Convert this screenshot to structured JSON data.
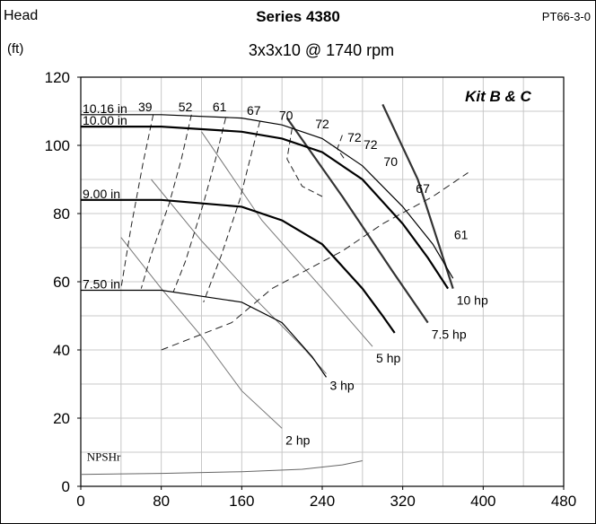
{
  "header": {
    "left_label": "Head",
    "title": "Series 4380",
    "code": "PT66-3-0",
    "unit": "(ft)",
    "subtitle": "3x3x10 @ 1740 rpm"
  },
  "chart_data": {
    "type": "line",
    "kit_label": "Kit B & C",
    "xlim": [
      0,
      480
    ],
    "ylim": [
      0,
      120
    ],
    "x_ticks": [
      0,
      80,
      160,
      240,
      320,
      400,
      480
    ],
    "y_ticks": [
      0,
      20,
      40,
      60,
      80,
      100,
      120
    ],
    "grid": true,
    "impeller_curves": [
      {
        "label": "10.16 in",
        "x": [
          0,
          80,
          160,
          200,
          240,
          280,
          320,
          350,
          370
        ],
        "y": [
          109,
          109,
          108,
          106,
          102,
          94,
          82,
          71,
          61
        ]
      },
      {
        "label": "10.00 in",
        "x": [
          0,
          80,
          160,
          200,
          240,
          280,
          320,
          345,
          365
        ],
        "y": [
          105.5,
          105.5,
          104,
          102,
          98,
          90,
          77,
          67,
          58
        ]
      },
      {
        "label": "9.00 in",
        "x": [
          0,
          80,
          160,
          200,
          240,
          280,
          300,
          312
        ],
        "y": [
          84,
          84,
          82,
          78,
          71,
          58,
          50,
          45
        ]
      },
      {
        "label": "7.50 in",
        "x": [
          0,
          80,
          160,
          200,
          230,
          244
        ],
        "y": [
          57.5,
          57.5,
          54,
          48,
          38,
          32
        ]
      }
    ],
    "efficiency_labels": [
      {
        "label": "39",
        "x": 64,
        "y": 110
      },
      {
        "label": "52",
        "x": 104,
        "y": 110
      },
      {
        "label": "61",
        "x": 138,
        "y": 110
      },
      {
        "label": "67",
        "x": 172,
        "y": 109
      },
      {
        "label": "70",
        "x": 204,
        "y": 107.5
      },
      {
        "label": "72",
        "x": 240,
        "y": 105
      },
      {
        "label": "72",
        "x": 272,
        "y": 101
      },
      {
        "label": "72",
        "x": 288,
        "y": 99
      },
      {
        "label": "70",
        "x": 308,
        "y": 94
      },
      {
        "label": "67",
        "x": 340,
        "y": 86
      },
      {
        "label": "61",
        "x": 378,
        "y": 72.5
      }
    ],
    "efficiency_contours": [
      {
        "label": "39",
        "x": [
          72,
          62,
          50,
          40
        ],
        "y": [
          109,
          95,
          76,
          58
        ]
      },
      {
        "label": "52",
        "x": [
          110,
          100,
          88,
          70,
          60
        ],
        "y": [
          109,
          96,
          83,
          68,
          58
        ]
      },
      {
        "label": "61",
        "x": [
          144,
          134,
          122,
          104,
          92
        ],
        "y": [
          108,
          96,
          83,
          66,
          57
        ]
      },
      {
        "label": "67",
        "x": [
          178,
          170,
          158,
          140,
          122
        ],
        "y": [
          107,
          98,
          84,
          68,
          54
        ]
      },
      {
        "label": "70",
        "x": [
          210,
          205,
          220,
          240
        ],
        "y": [
          105,
          96,
          88,
          85
        ]
      },
      {
        "label": "72",
        "x": [
          260,
          255,
          262
        ],
        "y": [
          103,
          99,
          96
        ]
      }
    ],
    "bep_line": {
      "x": [
        80,
        150,
        190,
        260,
        300,
        350,
        385
      ],
      "y": [
        40,
        48,
        58,
        69,
        77,
        85,
        92
      ]
    },
    "power_curves": [
      {
        "label": "10 hp",
        "x": [
          300,
          335,
          370
        ],
        "y": [
          112,
          90,
          58
        ]
      },
      {
        "label": "7.5 hp",
        "x": [
          205,
          260,
          310,
          345
        ],
        "y": [
          108,
          85,
          63,
          48
        ]
      },
      {
        "label": "5 hp",
        "x": [
          120,
          180,
          240,
          290
        ],
        "y": [
          104,
          78,
          58,
          41
        ]
      },
      {
        "label": "3 hp",
        "x": [
          70,
          120,
          170,
          220,
          244
        ],
        "y": [
          90,
          72,
          56,
          41,
          33
        ]
      },
      {
        "label": "2 hp",
        "x": [
          40,
          80,
          120,
          160,
          200
        ],
        "y": [
          73,
          58,
          44,
          28,
          17
        ]
      }
    ],
    "npshr": {
      "label": "NPSHr",
      "x": [
        0,
        80,
        160,
        220,
        260,
        280
      ],
      "y": [
        3.5,
        3.8,
        4.3,
        5,
        6.3,
        7.5
      ]
    }
  }
}
